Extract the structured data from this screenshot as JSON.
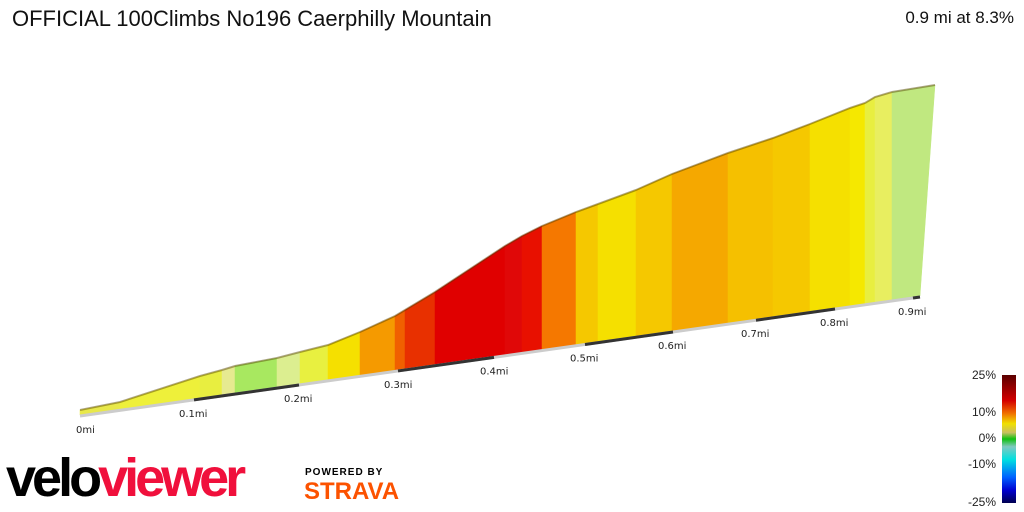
{
  "title": "OFFICIAL 100Climbs No196 Caerphilly Mountain",
  "summary": "0.9 mi at 8.3%",
  "chart_data": {
    "type": "area",
    "xlabel": "",
    "ylabel": "",
    "x_ticks": [
      "0mi",
      "0.1mi",
      "0.2mi",
      "0.3mi",
      "0.4mi",
      "0.5mi",
      "0.6mi",
      "0.7mi",
      "0.8mi",
      "0.9mi"
    ],
    "segment_colors": [
      "#e8e84a",
      "#eef03a",
      "#e8ee40",
      "#e6ea90",
      "#a8e860",
      "#dcee90",
      "#e8f040",
      "#f5e000",
      "#f59a00",
      "#f06000",
      "#e83000",
      "#e00000",
      "#e00808",
      "#e81000",
      "#f57800",
      "#f5c800",
      "#f5e000",
      "#f5c800",
      "#f5a800",
      "#f5c000",
      "#f5c800",
      "#f5e000",
      "#f5e800",
      "#e8ee40",
      "#e8ee60",
      "#c0e880"
    ],
    "legend": {
      "labels": [
        "25%",
        "10%",
        "0%",
        "-10%",
        "-25%"
      ]
    }
  },
  "logo": {
    "velo": "velo",
    "viewer": "viewer",
    "powered_by": "POWERED BY",
    "strava": "STRAVA"
  }
}
